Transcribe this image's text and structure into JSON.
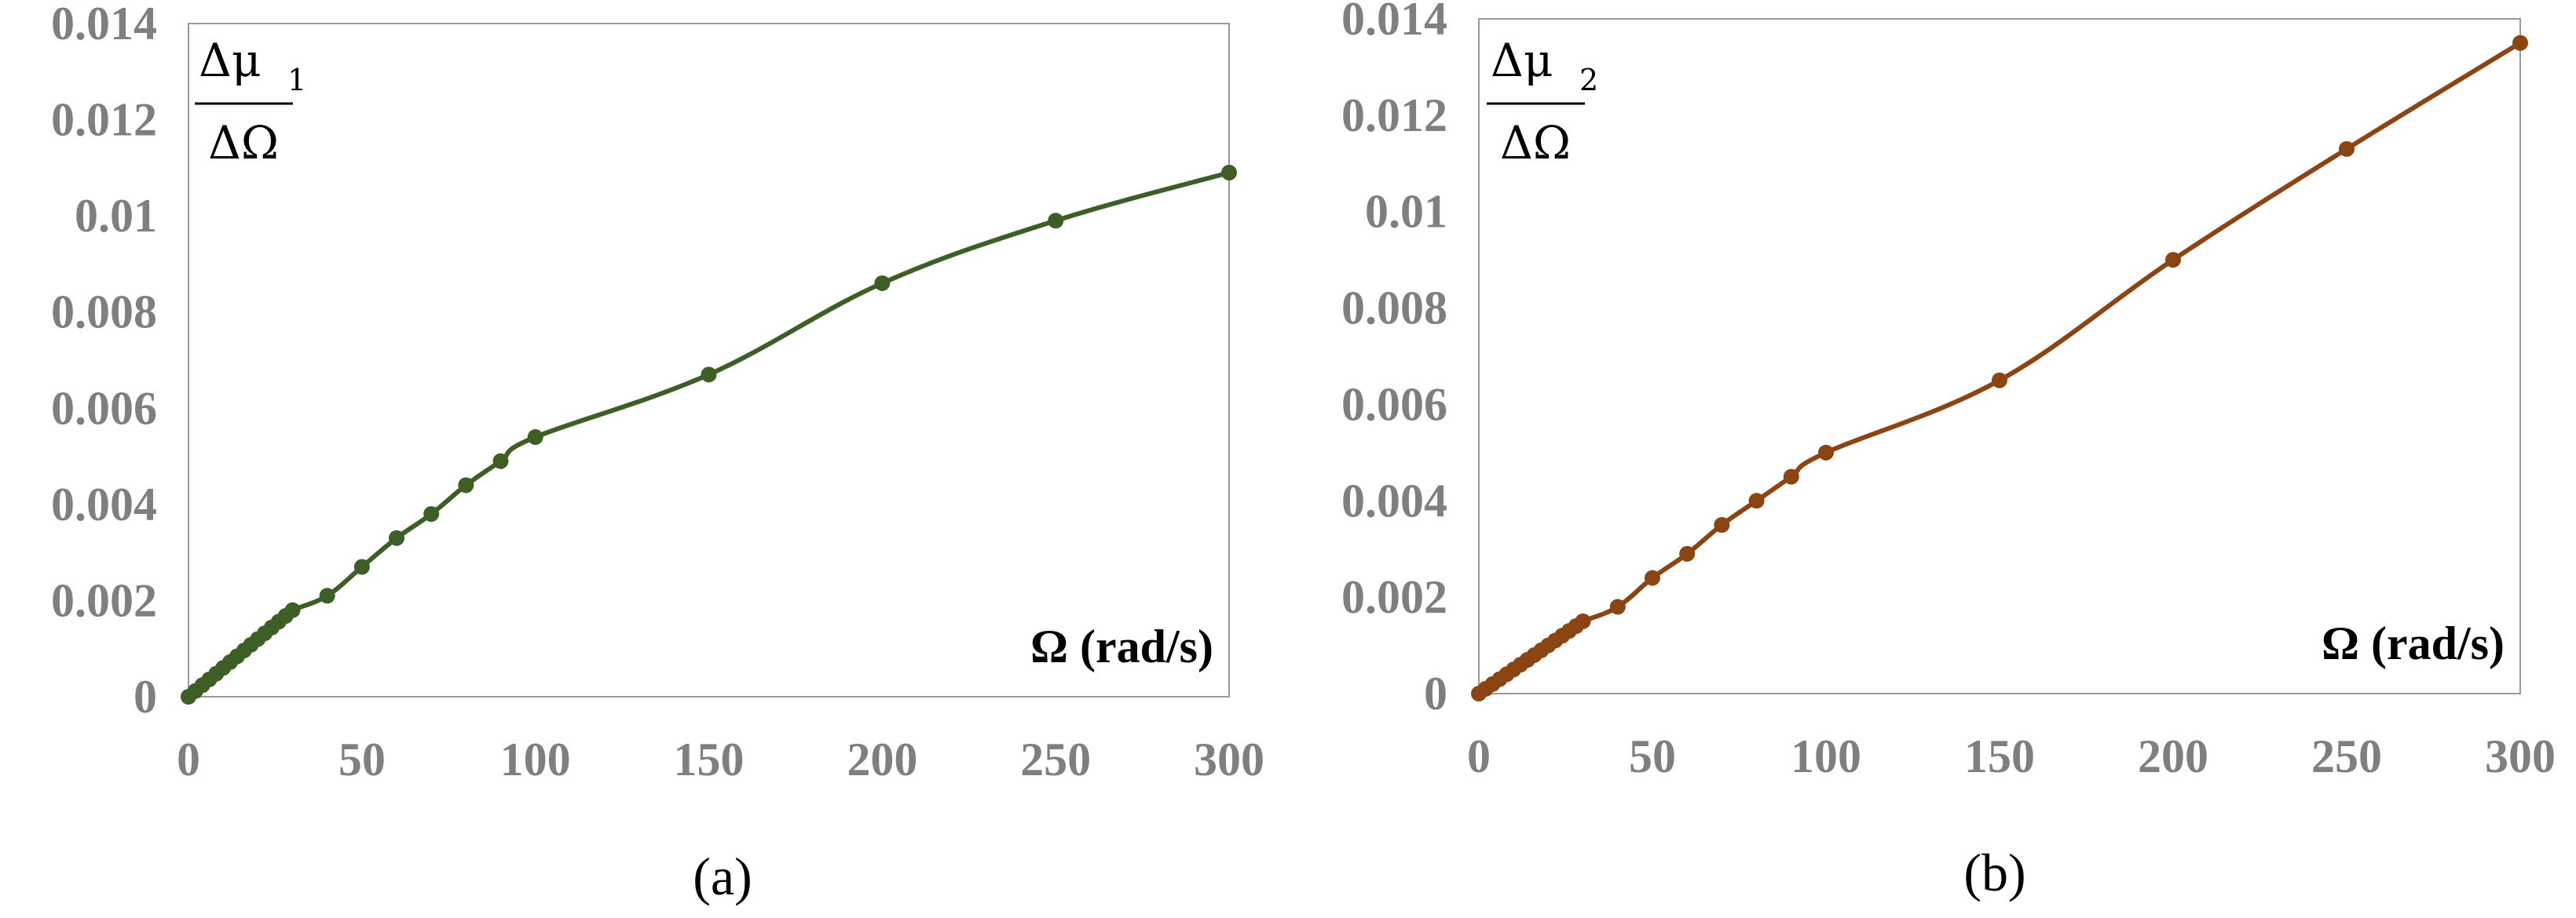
{
  "chart_data": [
    {
      "type": "line",
      "panel_label": "(a)",
      "color": "#3d5e25",
      "ylabel": {
        "numerator_symbol": "Δμ",
        "numerator_subscript": "1",
        "denominator": "ΔΩ"
      },
      "xlabel": "Ω (rad/s)",
      "xlim": [
        0,
        300
      ],
      "ylim": [
        0,
        0.014
      ],
      "xticks": [
        {
          "value": 0,
          "label": "0"
        },
        {
          "value": 50,
          "label": "50"
        },
        {
          "value": 100,
          "label": "100"
        },
        {
          "value": 150,
          "label": "150"
        },
        {
          "value": 200,
          "label": "200"
        },
        {
          "value": 250,
          "label": "250"
        },
        {
          "value": 300,
          "label": "300"
        }
      ],
      "yticks": [
        {
          "value": 0,
          "label": "0"
        },
        {
          "value": 0.002,
          "label": "0.002"
        },
        {
          "value": 0.004,
          "label": "0.004"
        },
        {
          "value": 0.006,
          "label": "0.006"
        },
        {
          "value": 0.008,
          "label": "0.008"
        },
        {
          "value": 0.01,
          "label": "0.01"
        },
        {
          "value": 0.012,
          "label": "0.012"
        },
        {
          "value": 0.014,
          "label": "0.014"
        }
      ],
      "grid": false,
      "x": [
        0,
        2,
        4,
        6,
        8,
        10,
        12,
        14,
        16,
        18,
        20,
        22,
        24,
        26,
        28,
        30,
        40,
        50,
        60,
        70,
        80,
        90,
        100,
        150,
        200,
        250,
        300
      ],
      "y": [
        0,
        0.00012,
        0.00024,
        0.00036,
        0.00048,
        0.0006,
        0.00072,
        0.00084,
        0.00096,
        0.00108,
        0.0012,
        0.00132,
        0.00144,
        0.00156,
        0.00168,
        0.0018,
        0.0021,
        0.0027,
        0.0033,
        0.0038,
        0.0044,
        0.0049,
        0.0054,
        0.0067,
        0.0086,
        0.0099,
        0.0109
      ]
    },
    {
      "type": "line",
      "panel_label": "(b)",
      "color": "#8b4513",
      "ylabel": {
        "numerator_symbol": "Δμ",
        "numerator_subscript": "2",
        "denominator": "ΔΩ"
      },
      "xlabel": "Ω (rad/s)",
      "xlim": [
        0,
        300
      ],
      "ylim": [
        0,
        0.014
      ],
      "xticks": [
        {
          "value": 0,
          "label": "0"
        },
        {
          "value": 50,
          "label": "50"
        },
        {
          "value": 100,
          "label": "100"
        },
        {
          "value": 150,
          "label": "150"
        },
        {
          "value": 200,
          "label": "200"
        },
        {
          "value": 250,
          "label": "250"
        },
        {
          "value": 300,
          "label": "300"
        }
      ],
      "yticks": [
        {
          "value": 0,
          "label": "0"
        },
        {
          "value": 0.002,
          "label": "0.002"
        },
        {
          "value": 0.004,
          "label": "0.004"
        },
        {
          "value": 0.006,
          "label": "0.006"
        },
        {
          "value": 0.008,
          "label": "0.008"
        },
        {
          "value": 0.01,
          "label": "0.01"
        },
        {
          "value": 0.012,
          "label": "0.012"
        },
        {
          "value": 0.014,
          "label": "0.014"
        }
      ],
      "grid": false,
      "x": [
        0,
        2,
        4,
        6,
        8,
        10,
        12,
        14,
        16,
        18,
        20,
        22,
        24,
        26,
        28,
        30,
        40,
        50,
        60,
        70,
        80,
        90,
        100,
        150,
        200,
        250,
        300
      ],
      "y": [
        0,
        0.0001,
        0.0002,
        0.0003,
        0.0004,
        0.0005,
        0.0006,
        0.0007,
        0.0008,
        0.0009,
        0.001,
        0.0011,
        0.0012,
        0.0013,
        0.0014,
        0.0015,
        0.0018,
        0.0024,
        0.0029,
        0.0035,
        0.004,
        0.0045,
        0.005,
        0.0065,
        0.009,
        0.0113,
        0.0135
      ]
    }
  ]
}
